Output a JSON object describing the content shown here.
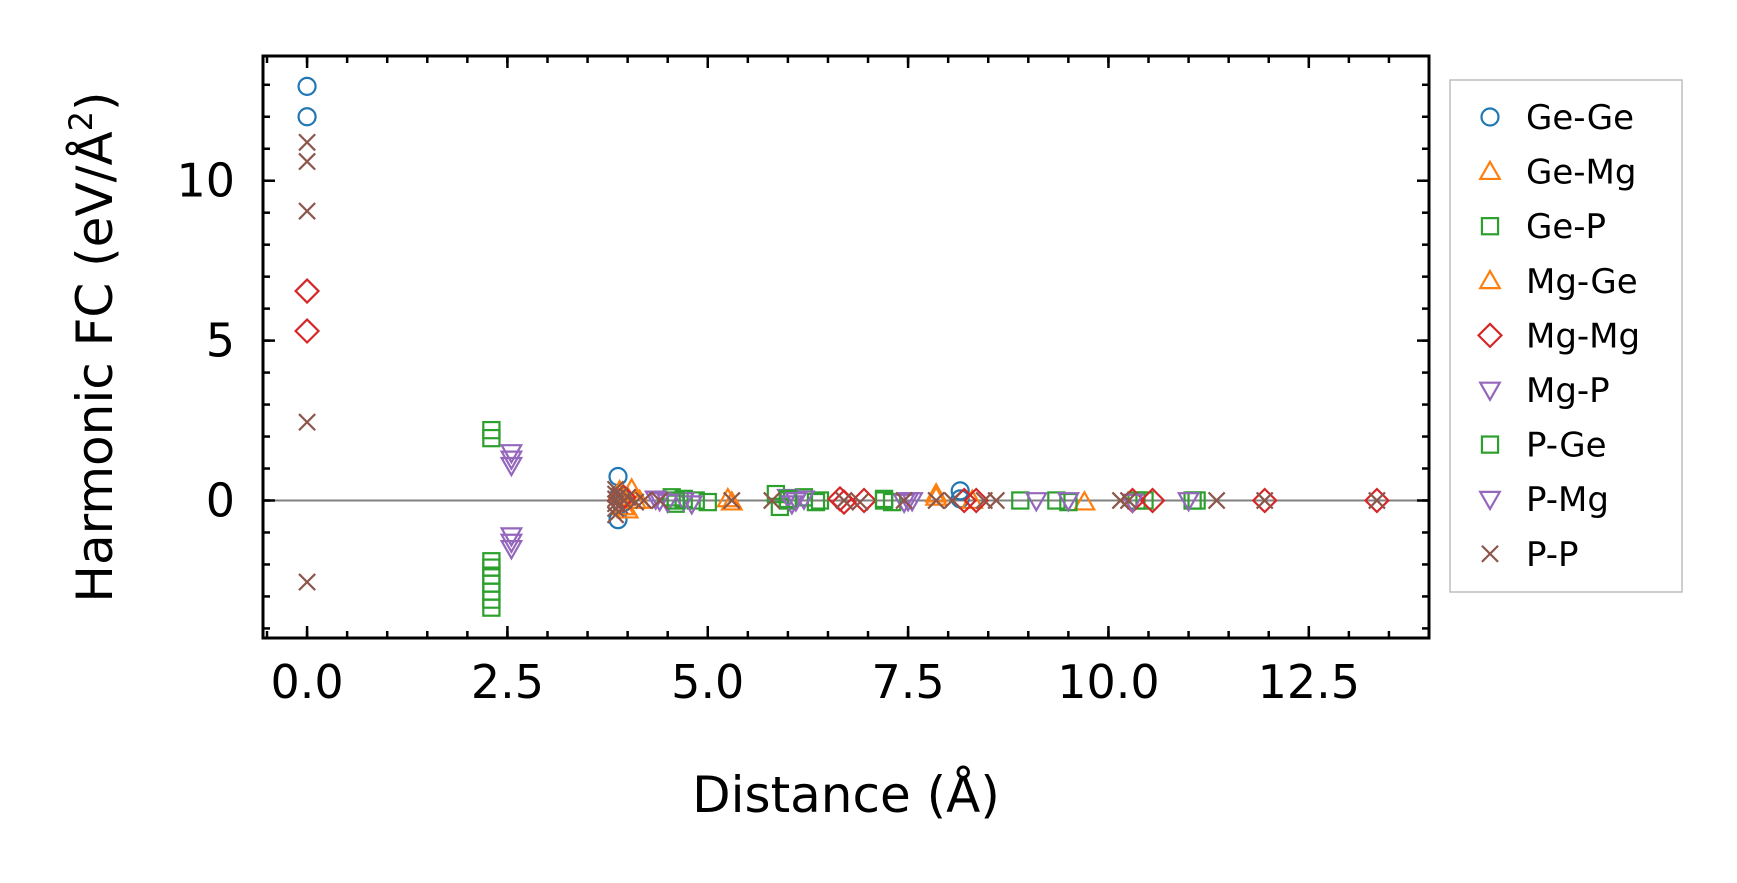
{
  "chart_data": {
    "type": "scatter",
    "xlabel": "Distance (Å)",
    "ylabel_main": "Harmonic FC (eV/Å",
    "ylabel_sup": "2",
    "ylabel_close": ")",
    "xlim": [
      -0.55,
      14.0
    ],
    "ylim": [
      -4.3,
      13.9
    ],
    "xticks": [
      0.0,
      2.5,
      5.0,
      7.5,
      10.0,
      12.5
    ],
    "xtick_labels": [
      "0.0",
      "2.5",
      "5.0",
      "7.5",
      "10.0",
      "12.5"
    ],
    "yticks": [
      0,
      5,
      10
    ],
    "ytick_labels": [
      "0",
      "5",
      "10"
    ],
    "x_minor_step": 0.5,
    "y_minor_step": 1,
    "zero_line": true,
    "grid": false,
    "legend_position": "outside-right",
    "series": [
      {
        "name": "Ge-Ge",
        "marker": "circle",
        "color": "#1f77b4",
        "x": [
          0.0,
          0.0,
          3.88,
          3.88,
          3.9,
          3.92,
          8.15,
          8.15
        ],
        "y": [
          12.95,
          12.0,
          0.75,
          -0.6,
          0.2,
          -0.1,
          0.3,
          0.05
        ]
      },
      {
        "name": "Ge-Mg",
        "marker": "triangle-up",
        "color": "#ff7f0e",
        "x": [
          3.9,
          3.95,
          4.0,
          4.05,
          4.15,
          5.25,
          5.3,
          7.85,
          8.3,
          9.7
        ],
        "y": [
          0.2,
          -0.2,
          0.1,
          0.35,
          0.0,
          0.05,
          -0.05,
          0.2,
          0.0,
          -0.05
        ]
      },
      {
        "name": "Ge-P",
        "marker": "square",
        "color": "#2ca02c",
        "x": [
          2.3,
          2.3,
          2.3,
          2.3,
          2.3,
          2.3,
          2.3,
          2.3,
          2.3,
          4.55,
          4.6,
          4.7,
          4.85,
          5.0,
          5.85,
          5.9,
          6.0,
          6.2,
          6.35,
          6.4,
          7.2,
          7.3,
          8.9,
          9.35,
          9.5,
          10.35,
          10.45,
          11.05,
          11.1
        ],
        "y": [
          2.2,
          1.95,
          -1.9,
          -2.1,
          -2.35,
          -2.6,
          -2.85,
          -3.1,
          -3.35,
          0.1,
          -0.1,
          0.05,
          0.0,
          -0.05,
          0.2,
          -0.2,
          0.0,
          0.1,
          -0.05,
          0.0,
          0.05,
          -0.05,
          0.0,
          0.0,
          -0.05,
          0.0,
          0.0,
          0.0,
          0.0
        ]
      },
      {
        "name": "Mg-Ge",
        "marker": "triangle-up",
        "color": "#ff7f0e",
        "x": [
          3.9,
          4.0,
          4.1,
          7.85
        ],
        "y": [
          0.3,
          -0.3,
          0.0,
          0.1
        ]
      },
      {
        "name": "Mg-Mg",
        "marker": "diamond",
        "color": "#d62728",
        "x": [
          0.0,
          0.0,
          3.9,
          3.95,
          6.65,
          6.7,
          6.95,
          8.2,
          8.35,
          10.3,
          10.55,
          11.95,
          13.35
        ],
        "y": [
          6.55,
          5.3,
          0.0,
          0.1,
          0.05,
          -0.05,
          0.0,
          0.0,
          0.0,
          0.0,
          0.0,
          0.0,
          0.0
        ]
      },
      {
        "name": "Mg-P",
        "marker": "triangle-down",
        "color": "#9467bd",
        "x": [
          2.55,
          2.55,
          2.55,
          2.55,
          2.55,
          2.55,
          4.35,
          4.5,
          4.7,
          4.8,
          6.0,
          6.05,
          6.1,
          6.2,
          7.45,
          7.55,
          9.1,
          9.5,
          10.3,
          11.0
        ],
        "y": [
          1.5,
          1.3,
          1.1,
          -1.1,
          -1.3,
          -1.5,
          0.05,
          -0.05,
          0.0,
          -0.1,
          0.1,
          -0.1,
          0.0,
          0.05,
          -0.05,
          0.0,
          0.0,
          0.0,
          -0.05,
          0.0
        ]
      },
      {
        "name": "P-Ge",
        "marker": "square",
        "color": "#2ca02c",
        "x": [
          4.6,
          6.0,
          7.2
        ],
        "y": [
          0.0,
          0.05,
          0.0
        ]
      },
      {
        "name": "P-Mg",
        "marker": "triangle-down",
        "color": "#9467bd",
        "x": [
          4.4,
          6.1,
          7.5
        ],
        "y": [
          0.0,
          0.0,
          0.0
        ]
      },
      {
        "name": "P-P",
        "marker": "x",
        "color": "#8c564b",
        "x": [
          0.0,
          0.0,
          0.0,
          0.0,
          0.0,
          3.85,
          3.85,
          3.85,
          3.85,
          3.85,
          3.85,
          3.9,
          3.9,
          3.95,
          4.0,
          4.1,
          4.2,
          4.4,
          5.3,
          5.8,
          6.7,
          6.9,
          7.45,
          7.85,
          8.05,
          8.45,
          8.6,
          10.15,
          10.25,
          11.35,
          11.95,
          13.35
        ],
        "y": [
          11.2,
          10.6,
          9.05,
          2.45,
          -2.55,
          0.35,
          0.2,
          0.05,
          -0.1,
          -0.25,
          -0.45,
          0.15,
          -0.15,
          0.0,
          0.1,
          -0.05,
          0.0,
          0.0,
          0.0,
          0.0,
          0.0,
          -0.05,
          0.0,
          0.0,
          0.0,
          0.0,
          0.0,
          0.0,
          0.0,
          0.0,
          0.0,
          0.0
        ]
      }
    ]
  }
}
